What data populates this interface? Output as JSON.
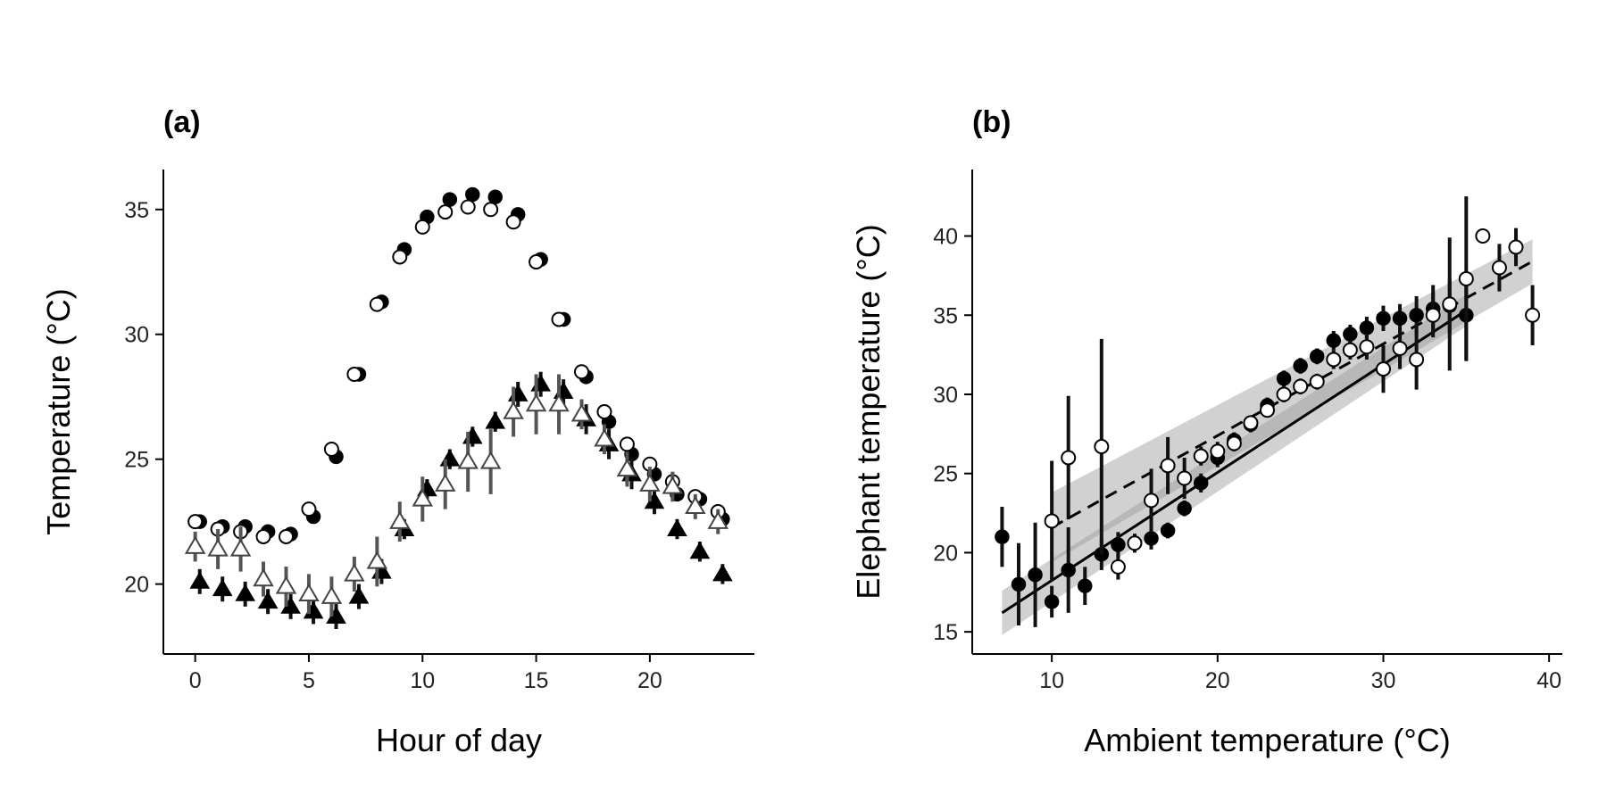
{
  "chart_data": [
    {
      "panel_label": "(a)",
      "type": "scatter",
      "xlabel": "Hour of day",
      "ylabel": "Temperature (°C)",
      "xlim": [
        -1.4,
        24.6
      ],
      "ylim": [
        17.2,
        36.6
      ],
      "xticks": [
        0,
        5,
        10,
        15,
        20
      ],
      "yticks": [
        20,
        25,
        30,
        35
      ],
      "grid": false,
      "legend": "none",
      "series": [
        {
          "marker": "filled-circle",
          "color": "#000000",
          "x": [
            0.2,
            1.2,
            2.2,
            3.2,
            4.2,
            5.2,
            6.2,
            7.2,
            8.2,
            9.2,
            10.2,
            11.2,
            12.2,
            13.2,
            14.2,
            15.2,
            16.2,
            17.2,
            18.2,
            19.2,
            20.2,
            21.2,
            22.2,
            23.2
          ],
          "y": [
            22.5,
            22.3,
            22.3,
            22.1,
            22.0,
            22.7,
            25.1,
            28.4,
            31.3,
            33.4,
            34.7,
            35.4,
            35.6,
            35.5,
            34.8,
            33.0,
            30.6,
            28.3,
            26.5,
            25.2,
            24.4,
            23.6,
            23.4,
            22.6
          ]
        },
        {
          "marker": "open-circle",
          "color": "#000000",
          "x": [
            0,
            1,
            2,
            3,
            4,
            5,
            6,
            7,
            8,
            9,
            10,
            11,
            12,
            13,
            14,
            15,
            16,
            17,
            18,
            19,
            20,
            21,
            22,
            23
          ],
          "y": [
            22.5,
            22.2,
            22.1,
            21.9,
            21.9,
            23.0,
            25.4,
            28.4,
            31.2,
            33.1,
            34.3,
            34.9,
            35.1,
            35.0,
            34.5,
            32.9,
            30.6,
            28.5,
            26.9,
            25.6,
            24.8,
            24.1,
            23.5,
            22.9
          ]
        },
        {
          "marker": "filled-triangle",
          "color": "#000000",
          "x": [
            0.2,
            1.2,
            2.2,
            3.2,
            4.2,
            5.2,
            6.2,
            7.2,
            8.2,
            9.2,
            10.2,
            11.2,
            12.2,
            13.2,
            14.2,
            15.2,
            16.2,
            17.2,
            18.2,
            19.2,
            20.2,
            21.2,
            22.2,
            23.2
          ],
          "y": [
            20.1,
            19.8,
            19.6,
            19.3,
            19.1,
            18.9,
            18.7,
            19.5,
            20.5,
            22.2,
            23.8,
            25.0,
            25.9,
            26.5,
            27.6,
            28.0,
            27.7,
            26.6,
            25.6,
            24.4,
            23.3,
            22.2,
            21.3,
            20.4
          ],
          "err": [
            0.5,
            0.5,
            0.5,
            0.5,
            0.5,
            0.5,
            0.5,
            0.5,
            0.5,
            0.4,
            0.4,
            0.4,
            0.4,
            0.4,
            0.5,
            0.5,
            0.5,
            0.6,
            0.6,
            0.6,
            0.5,
            0.4,
            0.4,
            0.4
          ]
        },
        {
          "marker": "open-triangle",
          "color": "#444444",
          "x": [
            0,
            1,
            2,
            3,
            4,
            5,
            6,
            7,
            8,
            9,
            10,
            11,
            12,
            13,
            14,
            15,
            16,
            17,
            18,
            19,
            20,
            21,
            22,
            23
          ],
          "y": [
            21.5,
            21.4,
            21.4,
            20.2,
            19.9,
            19.6,
            19.5,
            20.4,
            20.9,
            22.5,
            23.4,
            24.0,
            24.9,
            24.9,
            26.9,
            27.2,
            27.2,
            26.8,
            25.8,
            24.6,
            24.0,
            23.9,
            23.1,
            22.5
          ],
          "err": [
            0.6,
            0.8,
            0.9,
            0.7,
            0.8,
            0.8,
            0.8,
            0.7,
            1.0,
            0.8,
            0.9,
            1.0,
            1.2,
            1.3,
            1.0,
            1.2,
            1.2,
            0.6,
            0.6,
            0.7,
            0.7,
            0.6,
            0.5,
            0.5
          ]
        }
      ]
    },
    {
      "panel_label": "(b)",
      "type": "scatter",
      "xlabel": "Ambient temperature (°C)",
      "ylabel": "Elephant temperature (°C)",
      "xlim": [
        5.2,
        40.8
      ],
      "ylim": [
        13.6,
        44.2
      ],
      "xticks": [
        10,
        20,
        30,
        40
      ],
      "yticks": [
        15,
        20,
        25,
        30,
        35,
        40
      ],
      "grid": false,
      "legend": "none",
      "fits": [
        {
          "style": "solid",
          "x": [
            7,
            35
          ],
          "y": [
            16.2,
            35.3
          ],
          "band_x": [
            7,
            35
          ],
          "band_upper": [
            17.6,
            36.3
          ],
          "band_lower": [
            14.8,
            34.3
          ]
        },
        {
          "style": "dashed",
          "x": [
            10,
            39
          ],
          "y": [
            21.6,
            38.4
          ],
          "band_x": [
            10,
            39
          ],
          "band_upper": [
            23.8,
            39.8
          ],
          "band_lower": [
            19.4,
            37.0
          ]
        }
      ],
      "series": [
        {
          "marker": "filled-circle",
          "color": "#000000",
          "x": [
            7,
            8,
            9,
            10,
            11,
            12,
            13,
            14,
            15,
            16,
            17,
            18,
            19,
            20,
            21,
            22,
            23,
            24,
            25,
            26,
            27,
            28,
            29,
            30,
            31,
            32,
            33,
            34,
            35
          ],
          "y": [
            21.0,
            18.0,
            18.6,
            16.9,
            18.9,
            17.9,
            19.9,
            20.5,
            20.6,
            20.9,
            21.4,
            22.8,
            24.4,
            26.0,
            27.1,
            28.1,
            29.3,
            31.0,
            31.8,
            32.4,
            33.4,
            33.8,
            34.2,
            34.8,
            34.8,
            35.0,
            35.4,
            35.6,
            35.0
          ],
          "err": [
            1.9,
            2.6,
            3.3,
            1.0,
            2.7,
            1.2,
            1.0,
            0.8,
            0.6,
            0.7,
            0.5,
            0.5,
            0.6,
            0.6,
            0.5,
            0.5,
            0.5,
            0.5,
            0.5,
            0.5,
            0.6,
            0.6,
            0.7,
            0.8,
            0.9,
            1.2,
            1.5,
            1.7,
            2.8
          ]
        },
        {
          "marker": "open-circle",
          "color": "#000000",
          "x": [
            10,
            11,
            13,
            14,
            15,
            16,
            17,
            18,
            19,
            20,
            21,
            22,
            23,
            24,
            25,
            26,
            27,
            28,
            29,
            30,
            31,
            32,
            33,
            34,
            35,
            36,
            37,
            38,
            39
          ],
          "y": [
            22.0,
            26.0,
            26.7,
            19.1,
            20.6,
            23.3,
            25.5,
            24.7,
            26.1,
            26.4,
            26.9,
            28.2,
            29.0,
            30.0,
            30.5,
            30.8,
            32.2,
            32.8,
            33.0,
            31.6,
            32.9,
            32.2,
            35.0,
            35.7,
            37.3,
            40.0,
            38.0,
            39.3,
            35.0
          ],
          "err": [
            3.8,
            3.9,
            6.8,
            0.8,
            0.5,
            2.0,
            1.8,
            1.3,
            0.6,
            0.6,
            0.5,
            0.4,
            0.4,
            0.5,
            0.5,
            0.5,
            0.6,
            0.6,
            0.8,
            1.5,
            1.3,
            1.9,
            1.4,
            4.2,
            5.2,
            0.0,
            1.5,
            1.2,
            1.9
          ]
        }
      ]
    }
  ]
}
